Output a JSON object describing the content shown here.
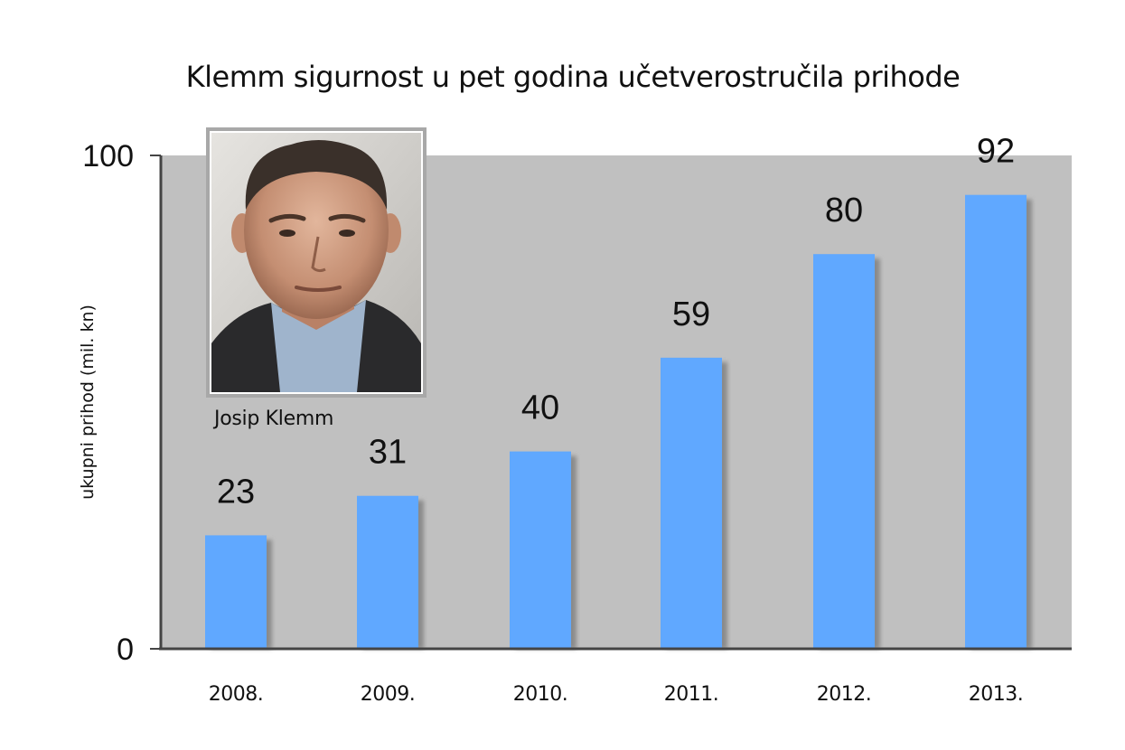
{
  "colors": {
    "plot_background": "#c0c0c0",
    "bar": "#60a8ff",
    "bar_shadow": "#8a8a8a",
    "axis": "#444444",
    "photo_border": "#a8a8a8"
  },
  "photo": {
    "caption": "Josip Klemm",
    "icon": "portrait-photo"
  },
  "chart_data": {
    "type": "bar",
    "title": "Klemm sigurnost u pet godina učetverostručila prihode",
    "xlabel": "",
    "ylabel": "ukupni prihod (mil. kn)",
    "ylim": [
      0,
      100
    ],
    "y_ticks": [
      0,
      100
    ],
    "categories": [
      "2008.",
      "2009.",
      "2010.",
      "2011.",
      "2012.",
      "2013."
    ],
    "values": [
      23,
      31,
      40,
      59,
      80,
      92
    ],
    "data_labels": [
      "23",
      "31",
      "40",
      "59",
      "80",
      "92"
    ],
    "grid": false,
    "legend": "none"
  }
}
